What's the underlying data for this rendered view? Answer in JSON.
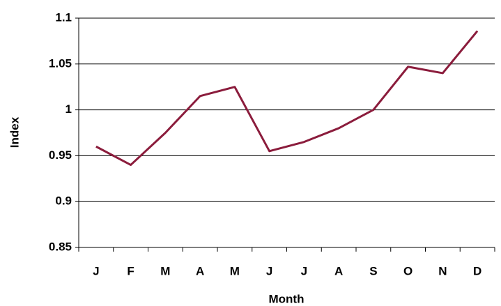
{
  "chart_data": {
    "type": "line",
    "x_label": "Month",
    "y_label": "Index",
    "categories": [
      "J",
      "F",
      "M",
      "A",
      "M",
      "J",
      "J",
      "A",
      "S",
      "O",
      "N",
      "D"
    ],
    "series": [
      {
        "name": "Index",
        "color": "#8b1c3c",
        "values": [
          0.96,
          0.94,
          0.975,
          1.015,
          1.025,
          0.955,
          0.965,
          0.98,
          1.0,
          1.047,
          1.04,
          1.086
        ]
      }
    ],
    "ylim": [
      0.85,
      1.1
    ],
    "yticks": [
      0.85,
      0.9,
      0.95,
      1,
      1.05,
      1.1
    ],
    "grid": true
  }
}
